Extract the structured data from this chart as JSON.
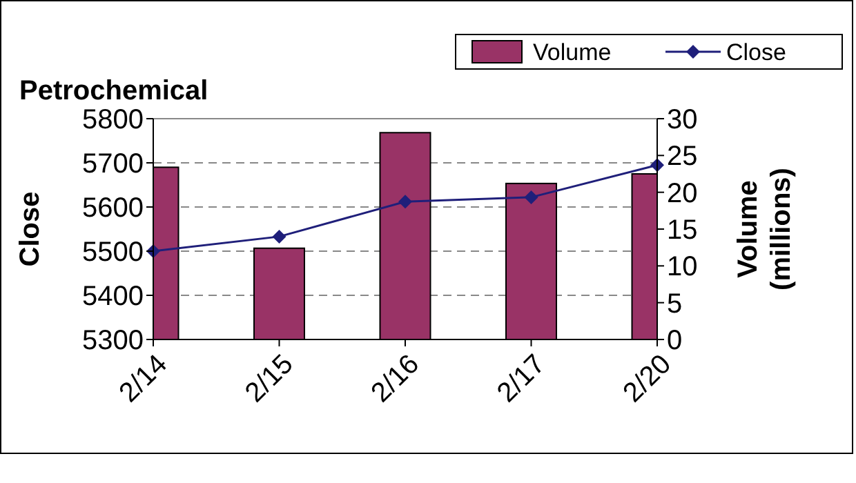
{
  "chart_data": {
    "type": "bar",
    "title": "Petrochemical",
    "ylabel": "Close",
    "y2label": "Volume (millions)",
    "categories": [
      "2/14",
      "2/15",
      "2/16",
      "2/17",
      "2/20"
    ],
    "series": [
      {
        "name": "Volume",
        "axis": "y2",
        "color": "#993366",
        "values": [
          23.4,
          12.4,
          28.1,
          21.2,
          22.5
        ]
      },
      {
        "name": "Close",
        "type": "line",
        "axis": "y",
        "color": "#1f1f7a",
        "marker": "diamond",
        "values": [
          5500,
          5533,
          5612,
          5622,
          5695
        ]
      }
    ],
    "ylim": [
      5300,
      5800
    ],
    "yticks": [
      5300,
      5400,
      5500,
      5600,
      5700,
      5800
    ],
    "y2lim": [
      0,
      30
    ],
    "y2ticks": [
      0,
      5,
      10,
      15,
      20,
      25,
      30
    ],
    "grid": "y",
    "legend": "top right"
  }
}
